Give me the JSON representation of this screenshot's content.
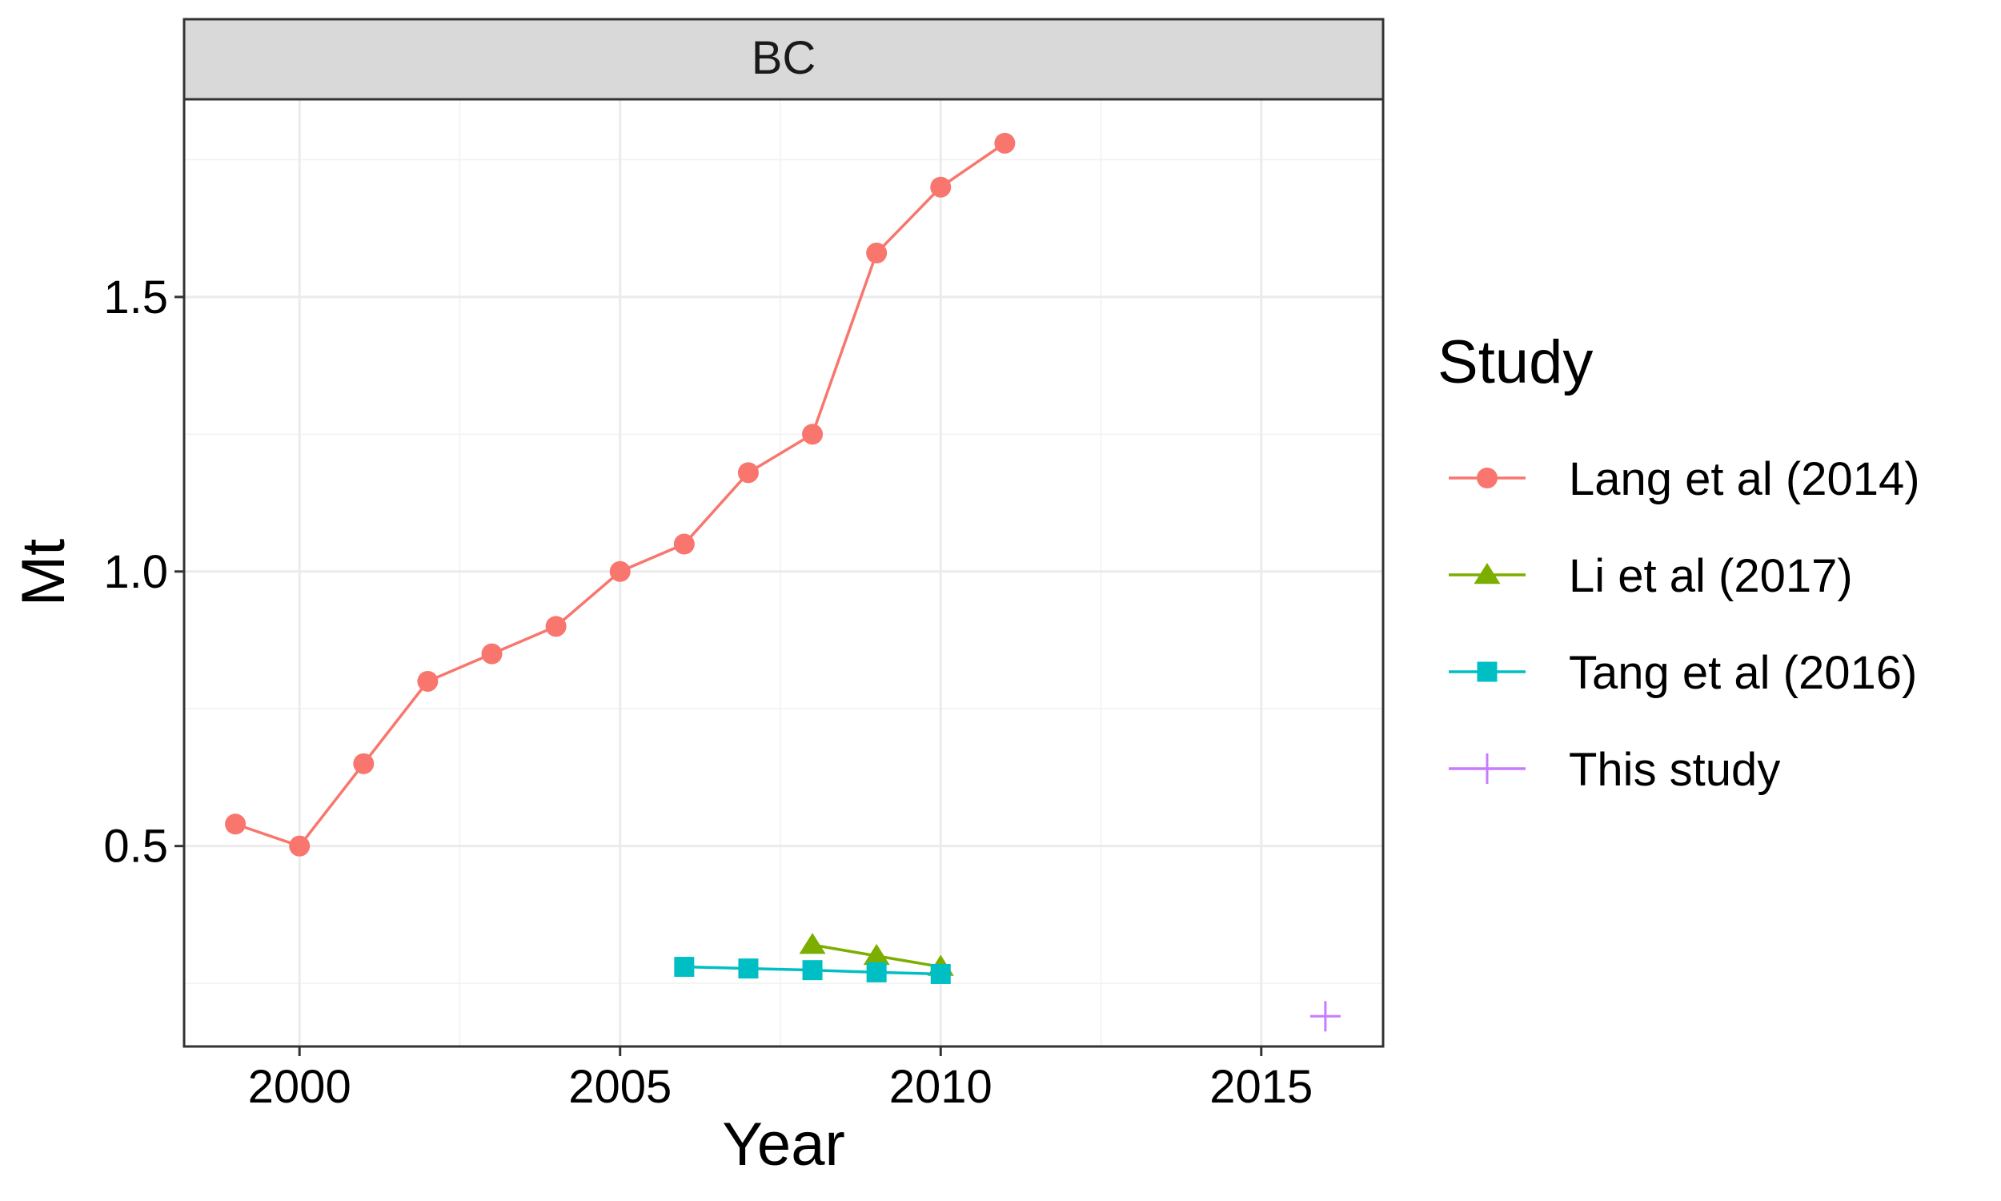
{
  "chart_data": {
    "type": "line",
    "facet_label": "BC",
    "xlabel": "Year",
    "ylabel": "Mt",
    "xlim": [
      1998.2,
      2016.9
    ],
    "ylim": [
      0.135,
      1.86
    ],
    "x_ticks": [
      2000,
      2005,
      2010,
      2015
    ],
    "x_tick_labels": [
      "2000",
      "2005",
      "2010",
      "2015"
    ],
    "y_ticks": [
      0.5,
      1.0,
      1.5
    ],
    "y_tick_labels": [
      "0.5",
      "1.0",
      "1.5"
    ],
    "grid": true,
    "legend_title": "Study",
    "legend_position": "right",
    "series": [
      {
        "name": "Lang et al (2014)",
        "color": "#F8766D",
        "marker": "circle",
        "line": true,
        "x": [
          1999,
          2000,
          2001,
          2002,
          2003,
          2004,
          2005,
          2006,
          2007,
          2008,
          2009,
          2010,
          2011
        ],
        "y": [
          0.54,
          0.5,
          0.65,
          0.8,
          0.85,
          0.9,
          1.0,
          1.05,
          1.18,
          1.25,
          1.58,
          1.7,
          1.78
        ]
      },
      {
        "name": "Li et al (2017)",
        "color": "#7CAE00",
        "marker": "triangle",
        "line": true,
        "x": [
          2008,
          2009,
          2010
        ],
        "y": [
          0.32,
          0.3,
          0.28
        ]
      },
      {
        "name": "Tang et al (2016)",
        "color": "#00BFC4",
        "marker": "square",
        "line": true,
        "x": [
          2006,
          2007,
          2008,
          2009,
          2010
        ],
        "y": [
          0.28,
          0.277,
          0.274,
          0.27,
          0.267
        ]
      },
      {
        "name": "This study",
        "color": "#C77CFF",
        "marker": "cross",
        "line": false,
        "x": [
          2016
        ],
        "y": [
          0.19
        ]
      }
    ]
  }
}
